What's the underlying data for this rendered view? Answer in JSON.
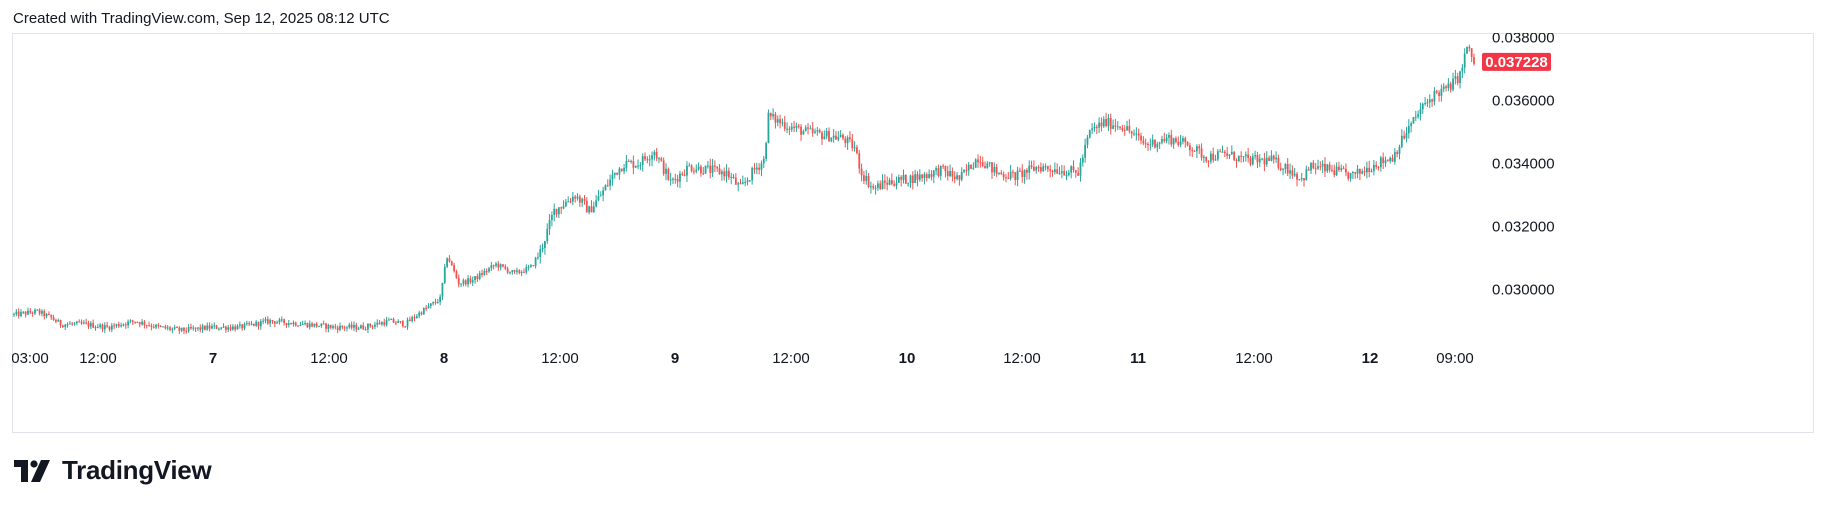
{
  "header": {
    "text": "Created with TradingView.com, Sep 12, 2025 08:12 UTC"
  },
  "brand": {
    "name": "TradingView",
    "logo_icon": "tradingview-logo-icon"
  },
  "colors": {
    "up": "#26a69a",
    "down": "#ef5350",
    "last_price_bg": "#f23645",
    "frame": "#e0e3eb"
  },
  "chart_data": {
    "type": "candlestick",
    "grid": false,
    "y_axis": {
      "position": "right",
      "range": [
        0.0282,
        0.0383
      ],
      "ticks": [
        "0.038000",
        "0.036000",
        "0.034000",
        "0.032000",
        "0.030000"
      ],
      "tick_values": [
        0.038,
        0.036,
        0.034,
        0.032,
        0.03
      ]
    },
    "x_axis": {
      "ticks": [
        {
          "label": "03:00",
          "major": false
        },
        {
          "label": "12:00",
          "major": false
        },
        {
          "label": "7",
          "major": true
        },
        {
          "label": "12:00",
          "major": false
        },
        {
          "label": "8",
          "major": true
        },
        {
          "label": "12:00",
          "major": false
        },
        {
          "label": "9",
          "major": true
        },
        {
          "label": "12:00",
          "major": false
        },
        {
          "label": "10",
          "major": true
        },
        {
          "label": "12:00",
          "major": false
        },
        {
          "label": "11",
          "major": true
        },
        {
          "label": "12:00",
          "major": false
        },
        {
          "label": "12",
          "major": true
        },
        {
          "label": "09:00",
          "major": false
        }
      ]
    },
    "last_price": "0.037228",
    "last_price_value": 0.037228,
    "close_path": [
      [
        0,
        0.0292
      ],
      [
        10,
        0.0293
      ],
      [
        16,
        0.0291
      ],
      [
        20,
        0.0289
      ],
      [
        30,
        0.0289
      ],
      [
        40,
        0.0288
      ],
      [
        52,
        0.029
      ],
      [
        62,
        0.0288
      ],
      [
        72,
        0.0287
      ],
      [
        85,
        0.0288
      ],
      [
        97,
        0.0288
      ],
      [
        110,
        0.029
      ],
      [
        125,
        0.0289
      ],
      [
        138,
        0.0288
      ],
      [
        150,
        0.0288
      ],
      [
        161,
        0.029
      ],
      [
        168,
        0.0289
      ],
      [
        175,
        0.0293
      ],
      [
        183,
        0.0297
      ],
      [
        186,
        0.0311
      ],
      [
        191,
        0.0302
      ],
      [
        197,
        0.0303
      ],
      [
        207,
        0.0308
      ],
      [
        215,
        0.0305
      ],
      [
        222,
        0.0307
      ],
      [
        226,
        0.0312
      ],
      [
        232,
        0.0325
      ],
      [
        241,
        0.033
      ],
      [
        247,
        0.0325
      ],
      [
        252,
        0.033
      ],
      [
        258,
        0.0337
      ],
      [
        262,
        0.034
      ],
      [
        268,
        0.034
      ],
      [
        275,
        0.0344
      ],
      [
        282,
        0.0334
      ],
      [
        290,
        0.0339
      ],
      [
        298,
        0.0338
      ],
      [
        306,
        0.0337
      ],
      [
        312,
        0.0332
      ],
      [
        318,
        0.0338
      ],
      [
        322,
        0.0341
      ],
      [
        324,
        0.0355
      ],
      [
        332,
        0.0352
      ],
      [
        340,
        0.035
      ],
      [
        348,
        0.0349
      ],
      [
        356,
        0.0348
      ],
      [
        361,
        0.0345
      ],
      [
        364,
        0.0337
      ],
      [
        369,
        0.0332
      ],
      [
        375,
        0.0334
      ],
      [
        383,
        0.0335
      ],
      [
        390,
        0.0336
      ],
      [
        398,
        0.0338
      ],
      [
        406,
        0.0335
      ],
      [
        414,
        0.0342
      ],
      [
        422,
        0.0337
      ],
      [
        430,
        0.0336
      ],
      [
        440,
        0.0339
      ],
      [
        449,
        0.0338
      ],
      [
        457,
        0.0337
      ],
      [
        462,
        0.035
      ],
      [
        468,
        0.0353
      ],
      [
        476,
        0.0352
      ],
      [
        486,
        0.0346
      ],
      [
        496,
        0.0348
      ],
      [
        504,
        0.0346
      ],
      [
        512,
        0.0342
      ],
      [
        520,
        0.0343
      ],
      [
        530,
        0.0341
      ],
      [
        540,
        0.0341
      ],
      [
        548,
        0.0338
      ],
      [
        553,
        0.0335
      ],
      [
        557,
        0.0339
      ],
      [
        565,
        0.0338
      ],
      [
        575,
        0.0336
      ],
      [
        585,
        0.034
      ],
      [
        592,
        0.0342
      ],
      [
        598,
        0.035
      ],
      [
        604,
        0.0357
      ],
      [
        610,
        0.0362
      ],
      [
        616,
        0.0364
      ],
      [
        621,
        0.0368
      ],
      [
        624,
        0.0377
      ],
      [
        627,
        0.0372
      ]
    ]
  }
}
